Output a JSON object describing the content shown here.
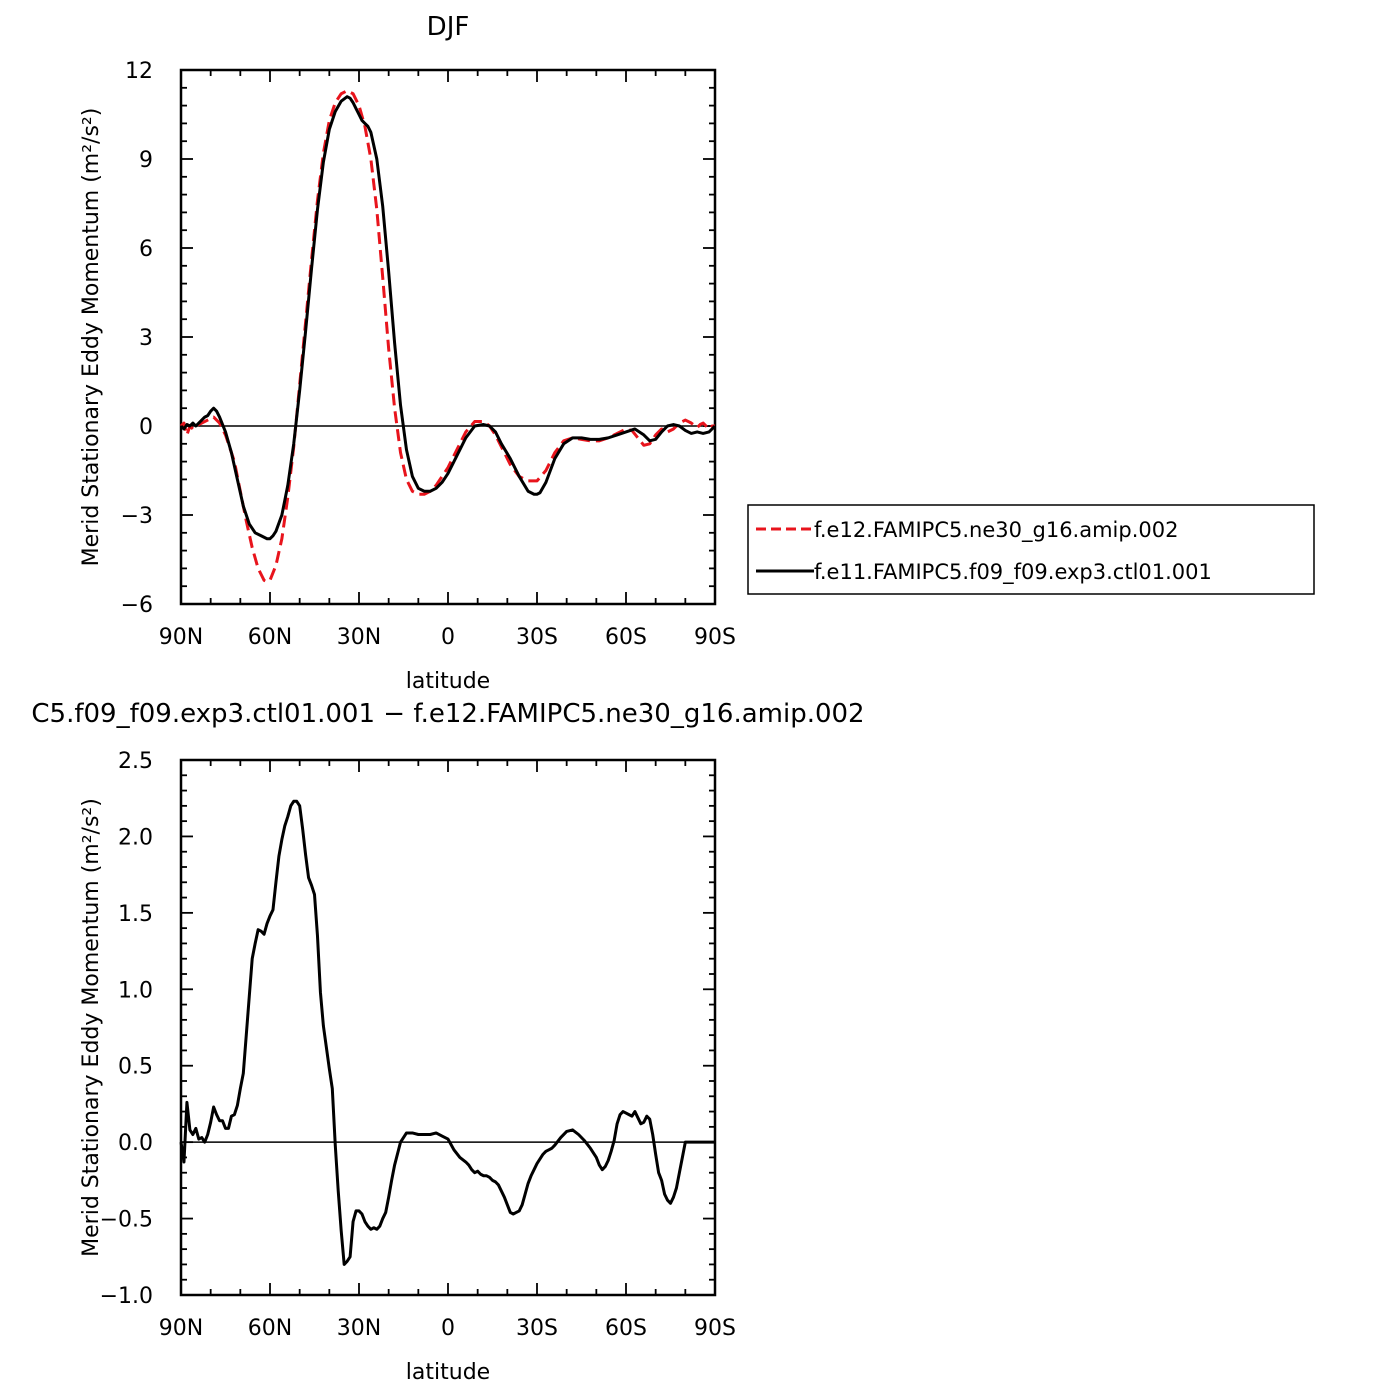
{
  "chart_data": [
    {
      "type": "line",
      "title": "DJF",
      "xlabel": "latitude",
      "ylabel": "Merid Stationary Eddy Momentum",
      "yunit": "(m²/s²)",
      "xlim": [
        -90,
        90
      ],
      "ylim": [
        -6,
        12
      ],
      "x_ticks": [
        -90,
        -60,
        -30,
        0,
        30,
        60,
        90
      ],
      "x_tick_labels": [
        "90N",
        "60N",
        "30N",
        "0",
        "30S",
        "60S",
        "90S"
      ],
      "y_ticks": [
        -6,
        -3,
        0,
        3,
        6,
        9,
        12
      ],
      "y_tick_labels": [
        "−6",
        "−3",
        "0",
        "3",
        "6",
        "9",
        "12"
      ],
      "grid": false,
      "legend_position": "right",
      "series": [
        {
          "name": "f.e12.FAMIPC5.ne30_g16.amip.002",
          "color": "#e8141c",
          "dash": "dashed",
          "x": [
            -90,
            -89,
            -88,
            -87,
            -86,
            -85,
            -83,
            -81,
            -79,
            -77,
            -75,
            -72,
            -70,
            -68,
            -66,
            -64,
            -62,
            -61,
            -60,
            -58,
            -56,
            -54,
            -52,
            -50,
            -48,
            -46,
            -44,
            -42,
            -40,
            -38,
            -36,
            -34,
            -32,
            -30,
            -28,
            -26,
            -24,
            -22,
            -20,
            -18,
            -16,
            -14,
            -12,
            -10,
            -8,
            -6,
            -4,
            -2,
            0,
            3,
            6,
            9,
            12,
            14,
            16,
            18,
            21,
            24,
            27,
            30,
            33,
            36,
            39,
            42,
            45,
            48,
            51,
            54,
            57,
            60,
            62,
            64,
            66,
            68,
            70,
            72,
            74,
            76,
            78,
            80,
            82,
            84,
            85,
            86,
            87,
            88,
            89,
            90
          ],
          "y": [
            0.0,
            0.1,
            -0.3,
            0.0,
            -0.1,
            0.0,
            0.1,
            0.2,
            0.3,
            0.1,
            -0.3,
            -1.2,
            -2.2,
            -3.2,
            -4.1,
            -4.8,
            -5.2,
            -5.25,
            -5.2,
            -4.7,
            -3.8,
            -2.4,
            -0.7,
            1.4,
            3.5,
            5.6,
            7.6,
            9.2,
            10.3,
            10.9,
            11.2,
            11.3,
            11.2,
            10.8,
            10.1,
            9.0,
            7.3,
            5.0,
            2.6,
            0.6,
            -0.9,
            -1.8,
            -2.2,
            -2.3,
            -2.3,
            -2.2,
            -2.0,
            -1.7,
            -1.4,
            -0.8,
            -0.2,
            0.15,
            0.15,
            0.0,
            -0.3,
            -0.7,
            -1.3,
            -1.7,
            -1.85,
            -1.85,
            -1.5,
            -0.9,
            -0.5,
            -0.4,
            -0.45,
            -0.5,
            -0.5,
            -0.4,
            -0.25,
            -0.1,
            -0.15,
            -0.4,
            -0.65,
            -0.6,
            -0.3,
            -0.1,
            -0.2,
            -0.1,
            0.1,
            0.2,
            0.1,
            -0.05,
            0.05,
            0.1,
            0.0,
            -0.1,
            0.0,
            0.0
          ]
        },
        {
          "name": "f.e11.FAMIPC5.f09_f09.exp3.ctl01.001",
          "color": "#000000",
          "dash": "solid",
          "x": [
            -90,
            -89,
            -88,
            -87,
            -86,
            -85,
            -84,
            -83,
            -82,
            -81,
            -80,
            -79,
            -78,
            -77,
            -75,
            -73,
            -71,
            -69,
            -67,
            -65,
            -63,
            -61,
            -60,
            -59,
            -58,
            -56,
            -54,
            -52,
            -50,
            -48,
            -46,
            -44,
            -42,
            -40,
            -38,
            -36,
            -34,
            -33,
            -32,
            -31,
            -30,
            -29,
            -28,
            -27,
            -26,
            -24,
            -22,
            -20,
            -18,
            -16,
            -14,
            -12,
            -10,
            -8,
            -6,
            -4,
            -2,
            0,
            3,
            6,
            9,
            12,
            14,
            16,
            18,
            21,
            24,
            27,
            29,
            30,
            31,
            33,
            36,
            39,
            42,
            45,
            48,
            51,
            54,
            57,
            60,
            63,
            66,
            68,
            70,
            72,
            74,
            76,
            78,
            80,
            82,
            84,
            86,
            88,
            90
          ],
          "y": [
            0.0,
            -0.1,
            0.05,
            0.0,
            0.1,
            0.0,
            0.1,
            0.2,
            0.3,
            0.35,
            0.5,
            0.6,
            0.5,
            0.3,
            -0.2,
            -0.9,
            -1.8,
            -2.7,
            -3.3,
            -3.6,
            -3.7,
            -3.8,
            -3.8,
            -3.7,
            -3.55,
            -3.0,
            -2.0,
            -0.6,
            1.2,
            3.2,
            5.3,
            7.3,
            8.9,
            10.0,
            10.6,
            10.95,
            11.1,
            11.05,
            10.9,
            10.7,
            10.5,
            10.3,
            10.2,
            10.1,
            9.9,
            9.0,
            7.4,
            5.2,
            2.8,
            0.7,
            -0.8,
            -1.7,
            -2.1,
            -2.2,
            -2.2,
            -2.1,
            -1.9,
            -1.6,
            -1.0,
            -0.4,
            0.0,
            0.05,
            0.0,
            -0.2,
            -0.6,
            -1.1,
            -1.7,
            -2.2,
            -2.3,
            -2.3,
            -2.25,
            -1.9,
            -1.1,
            -0.6,
            -0.4,
            -0.4,
            -0.45,
            -0.45,
            -0.4,
            -0.3,
            -0.2,
            -0.1,
            -0.3,
            -0.5,
            -0.45,
            -0.2,
            0.0,
            0.05,
            0.0,
            -0.15,
            -0.25,
            -0.2,
            -0.25,
            -0.2,
            0.0
          ]
        }
      ]
    },
    {
      "type": "line",
      "title": "C5.f09_f09.exp3.ctl01.001 − f.e12.FAMIPC5.ne30_g16.amip.002",
      "xlabel": "latitude",
      "ylabel": "Merid Stationary Eddy Momentum",
      "yunit": "(m²/s²)",
      "xlim": [
        -90,
        90
      ],
      "ylim": [
        -1.0,
        2.5
      ],
      "x_ticks": [
        -90,
        -60,
        -30,
        0,
        30,
        60,
        90
      ],
      "x_tick_labels": [
        "90N",
        "60N",
        "30N",
        "0",
        "30S",
        "60S",
        "90S"
      ],
      "y_ticks": [
        -1.0,
        -0.5,
        0.0,
        0.5,
        1.0,
        1.5,
        2.0,
        2.5
      ],
      "y_tick_labels": [
        "−1.0",
        "−0.5",
        "0.0",
        "0.5",
        "1.0",
        "1.5",
        "2.0",
        "2.5"
      ],
      "grid": false,
      "series": [
        {
          "color": "#000000",
          "dash": "solid",
          "x": [
            -90,
            -89,
            -88,
            -87,
            -86,
            -85,
            -84,
            -83,
            -82,
            -81,
            -80,
            -79,
            -78,
            -77,
            -76,
            -75,
            -74,
            -73,
            -72,
            -71,
            -70,
            -69,
            -68,
            -67,
            -66,
            -65,
            -64,
            -63,
            -62,
            -61,
            -60,
            -59,
            -58,
            -57,
            -56,
            -55,
            -54,
            -53,
            -52,
            -51,
            -50,
            -49,
            -48,
            -47,
            -46,
            -45,
            -44,
            -43,
            -42,
            -41,
            -40,
            -39,
            -38,
            -37,
            -36,
            -35,
            -34,
            -33,
            -32,
            -31,
            -30,
            -29,
            -28,
            -27,
            -26,
            -25,
            -24,
            -23,
            -22,
            -21,
            -20,
            -19,
            -18,
            -16,
            -14,
            -12,
            -10,
            -8,
            -6,
            -4,
            -2,
            0,
            2,
            4,
            6,
            7,
            8,
            9,
            10,
            11,
            12,
            13,
            14,
            15,
            16,
            17,
            18,
            19,
            20,
            21,
            22,
            23,
            24,
            25,
            26,
            27,
            28,
            29,
            30,
            31,
            32,
            33,
            34,
            35,
            36,
            38,
            40,
            42,
            44,
            46,
            48,
            50,
            51,
            52,
            53,
            54,
            55,
            56,
            57,
            58,
            59,
            60,
            61,
            62,
            63,
            64,
            65,
            66,
            67,
            68,
            69,
            70,
            71,
            72,
            73,
            74,
            75,
            76,
            77,
            78,
            79,
            80,
            81,
            82,
            83,
            84,
            85,
            86,
            87,
            88,
            89,
            90
          ],
          "y": [
            0.0,
            -0.13,
            0.26,
            0.08,
            0.05,
            0.09,
            0.02,
            0.03,
            0.0,
            0.05,
            0.13,
            0.23,
            0.18,
            0.14,
            0.14,
            0.09,
            0.09,
            0.17,
            0.18,
            0.24,
            0.35,
            0.45,
            0.7,
            0.95,
            1.2,
            1.3,
            1.39,
            1.38,
            1.36,
            1.43,
            1.48,
            1.52,
            1.7,
            1.87,
            1.98,
            2.07,
            2.13,
            2.2,
            2.23,
            2.23,
            2.2,
            2.05,
            1.88,
            1.73,
            1.68,
            1.62,
            1.35,
            0.98,
            0.76,
            0.62,
            0.48,
            0.35,
            -0.02,
            -0.32,
            -0.58,
            -0.8,
            -0.78,
            -0.75,
            -0.52,
            -0.45,
            -0.45,
            -0.47,
            -0.52,
            -0.55,
            -0.57,
            -0.56,
            -0.57,
            -0.55,
            -0.5,
            -0.46,
            -0.36,
            -0.25,
            -0.15,
            0.0,
            0.06,
            0.06,
            0.05,
            0.05,
            0.05,
            0.06,
            0.04,
            0.02,
            -0.05,
            -0.1,
            -0.13,
            -0.15,
            -0.18,
            -0.2,
            -0.19,
            -0.21,
            -0.22,
            -0.22,
            -0.23,
            -0.25,
            -0.26,
            -0.28,
            -0.32,
            -0.36,
            -0.41,
            -0.46,
            -0.47,
            -0.46,
            -0.45,
            -0.41,
            -0.34,
            -0.27,
            -0.22,
            -0.18,
            -0.14,
            -0.11,
            -0.08,
            -0.06,
            -0.05,
            -0.04,
            -0.02,
            0.03,
            0.07,
            0.08,
            0.05,
            0.01,
            -0.04,
            -0.1,
            -0.15,
            -0.18,
            -0.16,
            -0.12,
            -0.06,
            0.01,
            0.12,
            0.18,
            0.2,
            0.19,
            0.18,
            0.17,
            0.2,
            0.16,
            0.12,
            0.13,
            0.17,
            0.15,
            0.05,
            -0.08,
            -0.2,
            -0.25,
            -0.34,
            -0.38,
            -0.4,
            -0.36,
            -0.3,
            -0.2,
            -0.1,
            0.0,
            0.0,
            0.0,
            0.0,
            0.0,
            0.0,
            0.0,
            0.0,
            0.0,
            0.0,
            0.0
          ]
        }
      ]
    }
  ]
}
